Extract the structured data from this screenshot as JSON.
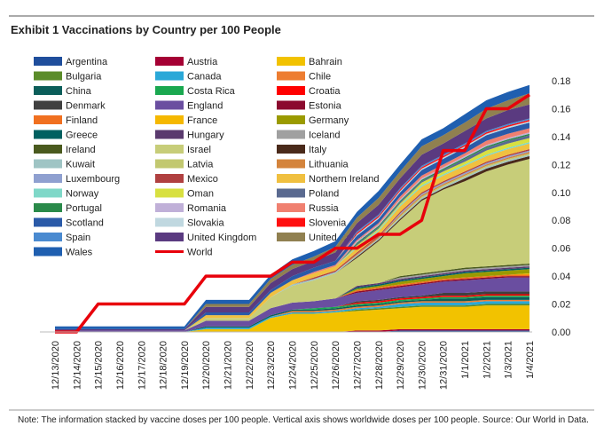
{
  "chart_data": {
    "type": "stacked_area",
    "title": "Exhibit 1 Vaccinations by Country per 100 People",
    "note": "Note: The information stacked by vaccine doses per 100 people. Vertical axis shows worldwide doses per 100 people.  Source: Our World in Data.",
    "categories": [
      "12/13/2020",
      "12/14/2020",
      "12/15/2020",
      "12/16/2020",
      "12/17/2020",
      "12/18/2020",
      "12/19/2020",
      "12/20/2020",
      "12/21/2020",
      "12/22/2020",
      "12/23/2020",
      "12/24/2020",
      "12/25/2020",
      "12/26/2020",
      "12/27/2020",
      "12/28/2020",
      "12/29/2020",
      "12/30/2020",
      "12/31/2020",
      "1/1/2021",
      "1/2/2021",
      "1/3/2021",
      "1/4/2021"
    ],
    "ylim": [
      0,
      0.18
    ],
    "yticks": [
      {
        "value": 0,
        "label": "0.00"
      },
      {
        "value": 0.02,
        "label": "0.02"
      },
      {
        "value": 0.04,
        "label": "0.04"
      },
      {
        "value": 0.06,
        "label": "0.06"
      },
      {
        "value": 0.08,
        "label": "0.08"
      },
      {
        "value": 0.1,
        "label": "0.10"
      },
      {
        "value": 0.12,
        "label": "0.12"
      },
      {
        "value": 0.14,
        "label": "0.14"
      },
      {
        "value": 0.16,
        "label": "0.16"
      },
      {
        "value": 0.18,
        "label": "0.18"
      }
    ],
    "legend": "top-left",
    "series": [
      {
        "name": "Argentina",
        "color": "#1f4e9c",
        "values": [
          0,
          0,
          0,
          0,
          0,
          0,
          0,
          0,
          0,
          0,
          0,
          0,
          0,
          0,
          0,
          0,
          0.001,
          0.001,
          0.001,
          0.001,
          0.001,
          0.001,
          0.001
        ]
      },
      {
        "name": "Austria",
        "color": "#a50034",
        "values": [
          0,
          0,
          0,
          0,
          0,
          0,
          0,
          0,
          0,
          0,
          0,
          0,
          0,
          0,
          0.001,
          0.001,
          0.001,
          0.001,
          0.001,
          0.001,
          0.001,
          0.001,
          0.001
        ]
      },
      {
        "name": "Bahrain",
        "color": "#f2c200",
        "values": [
          0,
          0,
          0,
          0,
          0,
          0,
          0,
          0.002,
          0.002,
          0.002,
          0.01,
          0.013,
          0.013,
          0.014,
          0.014,
          0.015,
          0.015,
          0.016,
          0.016,
          0.016,
          0.017,
          0.017,
          0.017
        ]
      },
      {
        "name": "Bulgaria",
        "color": "#5b8c2a",
        "values": [
          0,
          0,
          0,
          0,
          0,
          0,
          0,
          0,
          0,
          0,
          0,
          0,
          0,
          0,
          0.001,
          0.001,
          0.001,
          0.001,
          0.001,
          0.001,
          0.001,
          0.001,
          0.001
        ]
      },
      {
        "name": "Canada",
        "color": "#2aa8d8",
        "values": [
          0,
          0,
          0,
          0,
          0,
          0,
          0,
          0.001,
          0.001,
          0.001,
          0.001,
          0.001,
          0.001,
          0.001,
          0.001,
          0.001,
          0.002,
          0.002,
          0.002,
          0.002,
          0.002,
          0.002,
          0.002
        ]
      },
      {
        "name": "Chile",
        "color": "#ed7d31",
        "values": [
          0,
          0,
          0,
          0,
          0,
          0,
          0,
          0,
          0,
          0,
          0,
          0.001,
          0.001,
          0.001,
          0.001,
          0.001,
          0.001,
          0.001,
          0.001,
          0.001,
          0.001,
          0.001,
          0.001
        ]
      },
      {
        "name": "China",
        "color": "#0b5e5a",
        "values": [
          0,
          0,
          0,
          0,
          0,
          0,
          0,
          0.001,
          0.001,
          0.001,
          0.001,
          0.001,
          0.001,
          0.001,
          0.001,
          0.001,
          0.001,
          0.001,
          0.002,
          0.002,
          0.002,
          0.002,
          0.002
        ]
      },
      {
        "name": "Costa Rica",
        "color": "#1aa850",
        "values": [
          0,
          0,
          0,
          0,
          0,
          0,
          0,
          0,
          0,
          0,
          0,
          0,
          0.001,
          0.001,
          0.001,
          0.001,
          0.001,
          0.001,
          0.001,
          0.001,
          0.001,
          0.001,
          0.001
        ]
      },
      {
        "name": "Croatia",
        "color": "#ff0000",
        "values": [
          0,
          0,
          0,
          0,
          0,
          0,
          0,
          0,
          0,
          0,
          0,
          0,
          0,
          0,
          0.001,
          0.001,
          0.001,
          0.001,
          0.001,
          0.001,
          0.001,
          0.001,
          0.001
        ]
      },
      {
        "name": "Denmark",
        "color": "#404040",
        "values": [
          0,
          0,
          0,
          0,
          0,
          0,
          0,
          0,
          0,
          0,
          0,
          0,
          0,
          0,
          0.001,
          0.001,
          0.001,
          0.001,
          0.002,
          0.002,
          0.002,
          0.002,
          0.002
        ]
      },
      {
        "name": "England",
        "color": "#6a4ea0",
        "values": [
          0.001,
          0.001,
          0.001,
          0.001,
          0.001,
          0.001,
          0.001,
          0.004,
          0.004,
          0.004,
          0.005,
          0.005,
          0.005,
          0.006,
          0.006,
          0.007,
          0.007,
          0.008,
          0.008,
          0.009,
          0.009,
          0.01,
          0.01
        ]
      },
      {
        "name": "Estonia",
        "color": "#8b0a2e",
        "values": [
          0,
          0,
          0,
          0,
          0,
          0,
          0,
          0,
          0,
          0,
          0,
          0,
          0,
          0,
          0.001,
          0.001,
          0.001,
          0.001,
          0.001,
          0.001,
          0.001,
          0.001,
          0.001
        ]
      },
      {
        "name": "Finland",
        "color": "#f07020",
        "values": [
          0,
          0,
          0,
          0,
          0,
          0,
          0,
          0,
          0,
          0,
          0,
          0,
          0,
          0,
          0.001,
          0.001,
          0.001,
          0.001,
          0.001,
          0.001,
          0.001,
          0.001,
          0.001
        ]
      },
      {
        "name": "France",
        "color": "#f5b800",
        "values": [
          0,
          0,
          0,
          0,
          0,
          0,
          0,
          0,
          0,
          0,
          0,
          0,
          0,
          0,
          0,
          0,
          0,
          0,
          0,
          0,
          0,
          0,
          0.001
        ]
      },
      {
        "name": "Germany",
        "color": "#9a9a00",
        "values": [
          0,
          0,
          0,
          0,
          0,
          0,
          0,
          0,
          0,
          0,
          0,
          0,
          0,
          0,
          0.001,
          0.001,
          0.002,
          0.002,
          0.002,
          0.003,
          0.003,
          0.003,
          0.003
        ]
      },
      {
        "name": "Greece",
        "color": "#006060",
        "values": [
          0,
          0,
          0,
          0,
          0,
          0,
          0,
          0,
          0,
          0,
          0,
          0,
          0,
          0,
          0.001,
          0.001,
          0.001,
          0.001,
          0.001,
          0.001,
          0.001,
          0.001,
          0.001
        ]
      },
      {
        "name": "Hungary",
        "color": "#5a3a6e",
        "values": [
          0,
          0,
          0,
          0,
          0,
          0,
          0,
          0,
          0,
          0,
          0,
          0,
          0,
          0,
          0.001,
          0.001,
          0.001,
          0.001,
          0.001,
          0.001,
          0.001,
          0.001,
          0.001
        ]
      },
      {
        "name": "Iceland",
        "color": "#a0a0a0",
        "values": [
          0,
          0,
          0,
          0,
          0,
          0,
          0,
          0,
          0,
          0,
          0,
          0,
          0,
          0,
          0,
          0,
          0.001,
          0.001,
          0.001,
          0.001,
          0.001,
          0.001,
          0.001
        ]
      },
      {
        "name": "Ireland",
        "color": "#4a5a1e",
        "values": [
          0,
          0,
          0,
          0,
          0,
          0,
          0,
          0,
          0,
          0,
          0,
          0,
          0,
          0,
          0,
          0,
          0.001,
          0.001,
          0.001,
          0.001,
          0.001,
          0.001,
          0.001
        ]
      },
      {
        "name": "Israel",
        "color": "#c7cd79",
        "values": [
          0,
          0,
          0,
          0,
          0,
          0,
          0,
          0.002,
          0.002,
          0.002,
          0.008,
          0.012,
          0.015,
          0.018,
          0.02,
          0.03,
          0.04,
          0.052,
          0.058,
          0.062,
          0.068,
          0.072,
          0.075
        ]
      },
      {
        "name": "Italy",
        "color": "#4a2a1a",
        "values": [
          0,
          0,
          0,
          0,
          0,
          0,
          0,
          0,
          0,
          0,
          0,
          0,
          0,
          0,
          0.001,
          0.001,
          0.001,
          0.001,
          0.001,
          0.002,
          0.002,
          0.002,
          0.002
        ]
      },
      {
        "name": "Kuwait",
        "color": "#9fc4c4",
        "values": [
          0,
          0,
          0,
          0,
          0,
          0,
          0,
          0,
          0,
          0,
          0,
          0.001,
          0.001,
          0.001,
          0.001,
          0.001,
          0.001,
          0.001,
          0.001,
          0.001,
          0.001,
          0.001,
          0.001
        ]
      },
      {
        "name": "Latvia",
        "color": "#c2c870",
        "values": [
          0,
          0,
          0,
          0,
          0,
          0,
          0,
          0,
          0,
          0,
          0,
          0,
          0,
          0,
          0,
          0,
          0.001,
          0.001,
          0.001,
          0.001,
          0.001,
          0.001,
          0.001
        ]
      },
      {
        "name": "Lithuania",
        "color": "#d4843c",
        "values": [
          0,
          0,
          0,
          0,
          0,
          0,
          0,
          0,
          0,
          0,
          0,
          0,
          0,
          0,
          0.001,
          0.001,
          0.001,
          0.001,
          0.001,
          0.001,
          0.001,
          0.001,
          0.001
        ]
      },
      {
        "name": "Luxembourg",
        "color": "#8fa0d0",
        "values": [
          0,
          0,
          0,
          0,
          0,
          0,
          0,
          0,
          0,
          0,
          0,
          0,
          0,
          0,
          0,
          0,
          0.001,
          0.001,
          0.001,
          0.001,
          0.001,
          0.001,
          0.001
        ]
      },
      {
        "name": "Mexico",
        "color": "#b04040",
        "values": [
          0,
          0,
          0,
          0,
          0,
          0,
          0,
          0,
          0,
          0,
          0,
          0,
          0.001,
          0.001,
          0.001,
          0.001,
          0.001,
          0.001,
          0.001,
          0.001,
          0.001,
          0.001,
          0.001
        ]
      },
      {
        "name": "Northern Ireland",
        "color": "#f0c040",
        "values": [
          0,
          0,
          0,
          0,
          0,
          0,
          0,
          0.002,
          0.002,
          0.002,
          0.003,
          0.003,
          0.003,
          0.003,
          0.003,
          0.003,
          0.004,
          0.004,
          0.004,
          0.004,
          0.004,
          0.004,
          0.004
        ]
      },
      {
        "name": "Norway",
        "color": "#7fd8c8",
        "values": [
          0,
          0,
          0,
          0,
          0,
          0,
          0,
          0,
          0,
          0,
          0,
          0,
          0,
          0,
          0.001,
          0.001,
          0.001,
          0.001,
          0.001,
          0.001,
          0.001,
          0.001,
          0.001
        ]
      },
      {
        "name": "Oman",
        "color": "#d8e040",
        "values": [
          0,
          0,
          0,
          0,
          0,
          0,
          0,
          0,
          0,
          0,
          0,
          0,
          0,
          0,
          0.001,
          0.001,
          0.001,
          0.002,
          0.002,
          0.002,
          0.003,
          0.003,
          0.003
        ]
      },
      {
        "name": "Poland",
        "color": "#5a6a90",
        "values": [
          0,
          0,
          0,
          0,
          0,
          0,
          0,
          0,
          0,
          0,
          0,
          0,
          0,
          0,
          0.001,
          0.001,
          0.001,
          0.001,
          0.001,
          0.002,
          0.002,
          0.002,
          0.002
        ]
      },
      {
        "name": "Portugal",
        "color": "#2a8a4a",
        "values": [
          0,
          0,
          0,
          0,
          0,
          0,
          0,
          0,
          0,
          0,
          0,
          0,
          0,
          0,
          0.001,
          0.001,
          0.001,
          0.001,
          0.001,
          0.001,
          0.001,
          0.001,
          0.001
        ]
      },
      {
        "name": "Romania",
        "color": "#c0b0d8",
        "values": [
          0,
          0,
          0,
          0,
          0,
          0,
          0,
          0,
          0,
          0,
          0,
          0,
          0,
          0,
          0.001,
          0.001,
          0.001,
          0.001,
          0.001,
          0.001,
          0.001,
          0.001,
          0.001
        ]
      },
      {
        "name": "Russia",
        "color": "#f08070",
        "values": [
          0,
          0,
          0,
          0,
          0,
          0,
          0,
          0,
          0,
          0,
          0,
          0,
          0.001,
          0.001,
          0.001,
          0.001,
          0.002,
          0.002,
          0.002,
          0.002,
          0.003,
          0.003,
          0.003
        ]
      },
      {
        "name": "Scotland",
        "color": "#2a5aa8",
        "values": [
          0,
          0,
          0,
          0,
          0,
          0,
          0,
          0.002,
          0.002,
          0.002,
          0.002,
          0.003,
          0.003,
          0.003,
          0.003,
          0.003,
          0.003,
          0.004,
          0.004,
          0.004,
          0.004,
          0.004,
          0.004
        ]
      },
      {
        "name": "Slovakia",
        "color": "#c0d8e0",
        "values": [
          0,
          0,
          0,
          0,
          0,
          0,
          0,
          0,
          0,
          0,
          0,
          0,
          0,
          0,
          0.001,
          0.001,
          0.001,
          0.001,
          0.001,
          0.001,
          0.001,
          0.001,
          0.001
        ]
      },
      {
        "name": "Slovenia",
        "color": "#ff1010",
        "values": [
          0,
          0,
          0,
          0,
          0,
          0,
          0,
          0,
          0,
          0,
          0,
          0,
          0,
          0,
          0.001,
          0.001,
          0.001,
          0.001,
          0.001,
          0.001,
          0.001,
          0.001,
          0.001
        ]
      },
      {
        "name": "Spain",
        "color": "#4a8ad0",
        "values": [
          0,
          0,
          0,
          0,
          0,
          0,
          0,
          0,
          0,
          0,
          0,
          0,
          0,
          0,
          0.001,
          0.001,
          0.001,
          0.001,
          0.001,
          0.001,
          0.001,
          0.001,
          0.001
        ]
      },
      {
        "name": "United Kingdom",
        "color": "#5a3a80",
        "values": [
          0.001,
          0.001,
          0.001,
          0.001,
          0.001,
          0.001,
          0.001,
          0.004,
          0.004,
          0.004,
          0.005,
          0.005,
          0.005,
          0.006,
          0.006,
          0.007,
          0.007,
          0.008,
          0.008,
          0.009,
          0.009,
          0.01,
          0.01
        ]
      },
      {
        "name": "United States",
        "color": "#908050",
        "values": [
          0,
          0,
          0,
          0,
          0,
          0,
          0,
          0.002,
          0.002,
          0.002,
          0.003,
          0.003,
          0.003,
          0.004,
          0.004,
          0.005,
          0.005,
          0.006,
          0.006,
          0.006,
          0.007,
          0.007,
          0.008
        ]
      },
      {
        "name": "Wales",
        "color": "#1f5fb0",
        "values": [
          0.002,
          0.002,
          0.002,
          0.002,
          0.002,
          0.002,
          0.002,
          0.003,
          0.003,
          0.003,
          0.003,
          0.004,
          0.004,
          0.004,
          0.004,
          0.005,
          0.005,
          0.005,
          0.005,
          0.006,
          0.006,
          0.006,
          0.006
        ]
      },
      {
        "name": "World",
        "color": "#e8000b",
        "type": "line",
        "values": [
          0,
          0,
          0.02,
          0.02,
          0.02,
          0.02,
          0.02,
          0.04,
          0.04,
          0.04,
          0.04,
          0.05,
          0.05,
          0.06,
          0.06,
          0.07,
          0.07,
          0.08,
          0.13,
          0.13,
          0.16,
          0.16,
          0.17
        ]
      }
    ]
  }
}
